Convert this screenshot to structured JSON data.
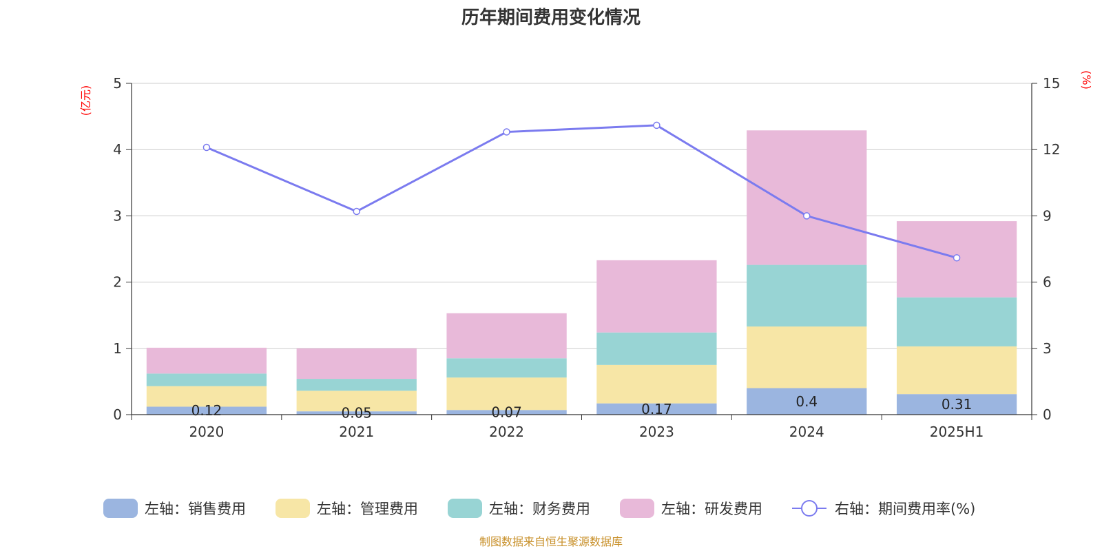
{
  "chart_data": {
    "type": "bar",
    "title": "历年期间费用变化情况",
    "categories": [
      "2020",
      "2021",
      "2022",
      "2023",
      "2024",
      "2025H1"
    ],
    "left_axis": {
      "unit": "(亿元)",
      "ylim": [
        0,
        5
      ],
      "ticks": [
        "0",
        "1",
        "2",
        "3",
        "4",
        "5"
      ]
    },
    "right_axis": {
      "unit": "(%)",
      "ylim": [
        0,
        15
      ],
      "ticks": [
        "0",
        "3",
        "6",
        "9",
        "12",
        "15"
      ]
    },
    "series": [
      {
        "name": "左轴：销售费用",
        "color": "#9bb5e0",
        "values": [
          0.12,
          0.05,
          0.07,
          0.17,
          0.4,
          0.31
        ],
        "labels": [
          "0.12",
          "0.05",
          "0.07",
          "0.17",
          "0.4",
          "0.31"
        ]
      },
      {
        "name": "左轴：管理费用",
        "color": "#f7e6a6",
        "values": [
          0.31,
          0.31,
          0.49,
          0.58,
          0.93,
          0.72
        ]
      },
      {
        "name": "左轴：财务费用",
        "color": "#98d4d4",
        "values": [
          0.19,
          0.18,
          0.29,
          0.49,
          0.93,
          0.74
        ]
      },
      {
        "name": "左轴：研发费用",
        "color": "#e8b9d9",
        "values": [
          0.39,
          0.46,
          0.68,
          1.09,
          2.03,
          1.15
        ]
      }
    ],
    "line_series": {
      "name": "右轴：期间费用率(%)",
      "color": "#7b7bef",
      "values": [
        12.1,
        9.2,
        12.8,
        13.1,
        9.0,
        7.1
      ]
    },
    "grid": true,
    "legend_position": "bottom"
  },
  "source_note": "制图数据来自恒生聚源数据库"
}
